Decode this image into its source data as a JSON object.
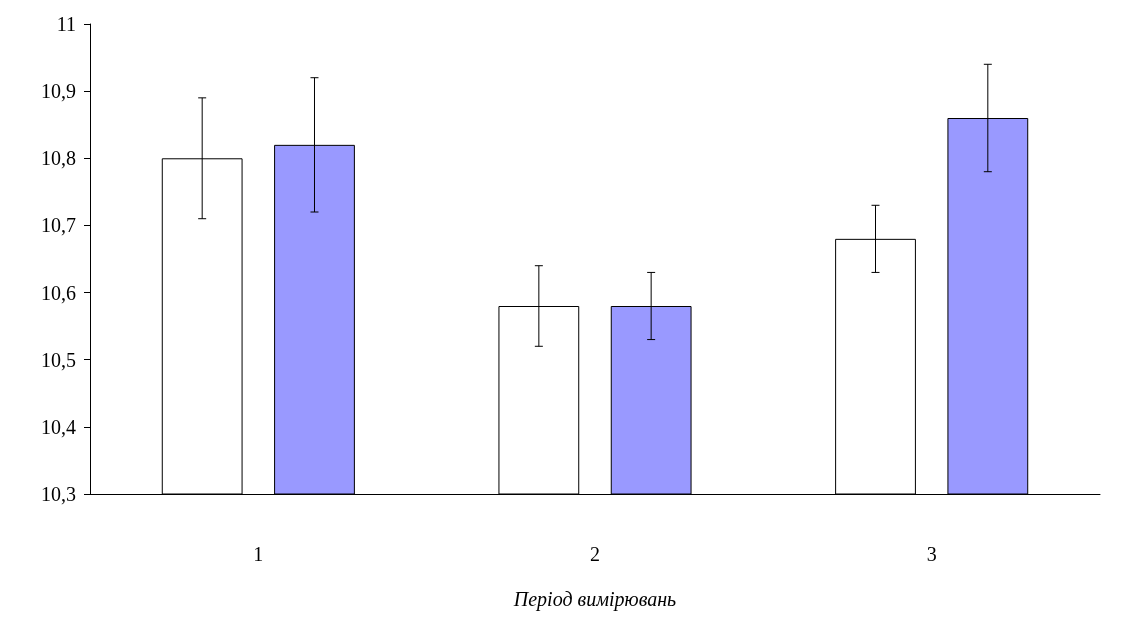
{
  "chart_data": {
    "type": "bar",
    "xlabel": "Період вимірювань",
    "categories": [
      "1",
      "2",
      "3"
    ],
    "series": [
      {
        "color": "#ffffff",
        "values": [
          10.8,
          10.58,
          10.68
        ],
        "errors": [
          0.09,
          0.06,
          0.05
        ]
      },
      {
        "color": "#9999ff",
        "values": [
          10.82,
          10.58,
          10.86
        ],
        "errors": [
          0.1,
          0.05,
          0.08
        ]
      }
    ],
    "ylim": [
      10.3,
      11
    ],
    "yticks": [
      {
        "value": 10.3,
        "label": "10,3"
      },
      {
        "value": 10.4,
        "label": "10,4"
      },
      {
        "value": 10.5,
        "label": "10,5"
      },
      {
        "value": 10.6,
        "label": "10,6"
      },
      {
        "value": 10.7,
        "label": "10,7"
      },
      {
        "value": 10.8,
        "label": "10,8"
      },
      {
        "value": 10.9,
        "label": "10,9"
      },
      11
    ]
  }
}
